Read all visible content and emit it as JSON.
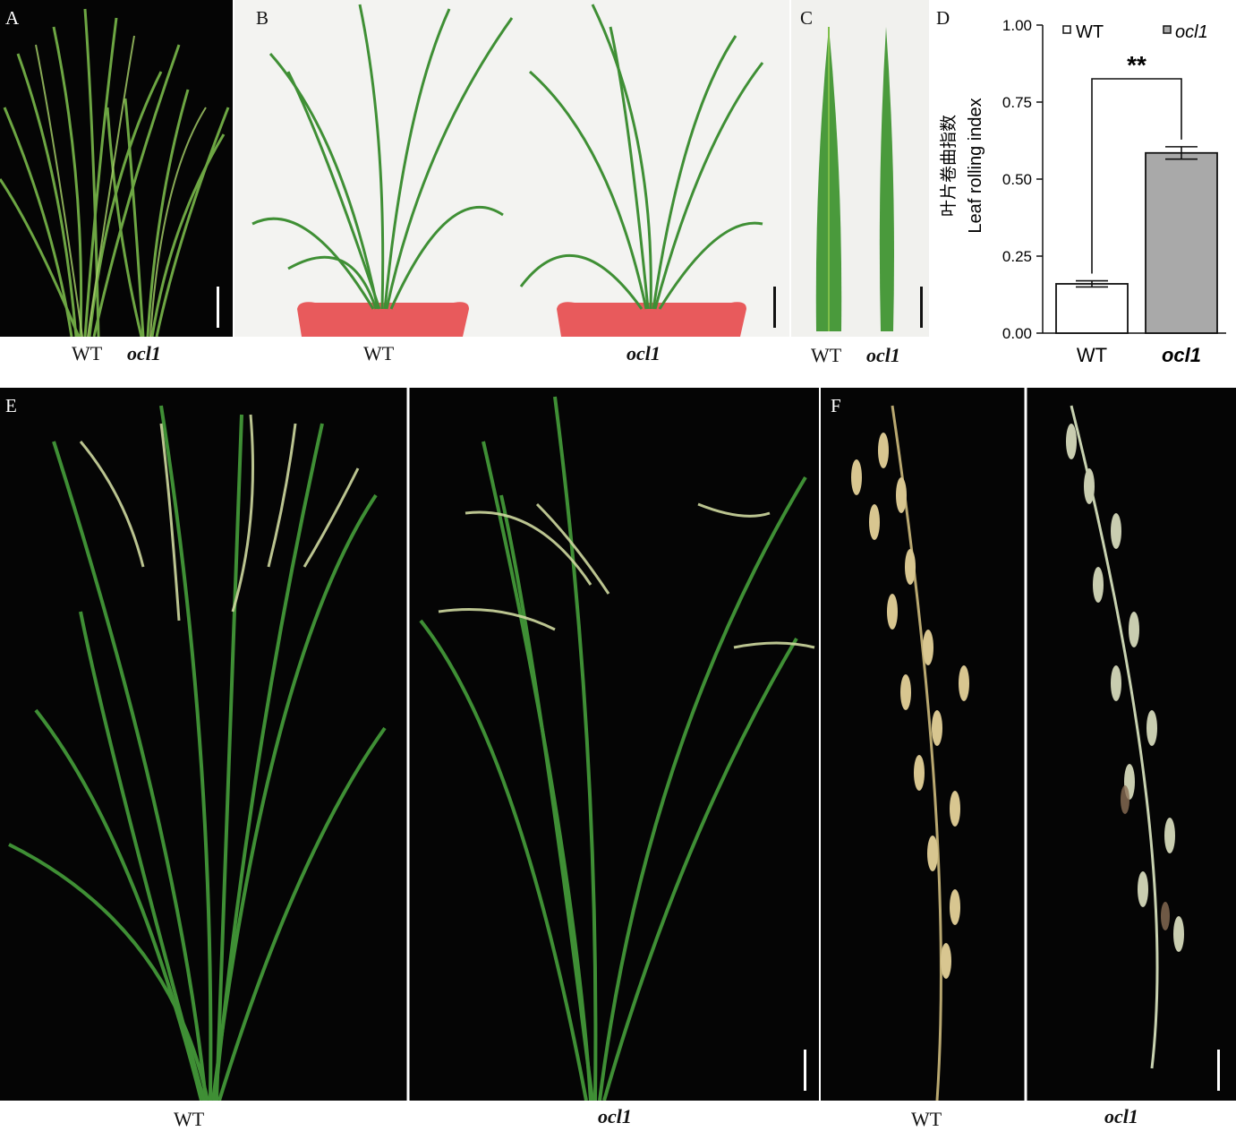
{
  "panels": {
    "A": {
      "label": "A",
      "captions": [
        "WT",
        "ocl1"
      ]
    },
    "B": {
      "label": "B",
      "captions": [
        "WT",
        "ocl1"
      ]
    },
    "C": {
      "label": "C",
      "captions": [
        "WT",
        "ocl1"
      ]
    },
    "D": {
      "label": "D"
    },
    "E": {
      "label": "E",
      "captions": [
        "WT",
        "ocl1"
      ]
    },
    "F": {
      "label": "F",
      "captions": [
        "WT",
        "ocl1"
      ]
    }
  },
  "colors": {
    "dark_bg": "#050505",
    "light_bg": "#f3f3f1",
    "leaf_green": "#3f8f35",
    "leaf_light": "#7fbf4a",
    "pot_red": "#e85a5c",
    "grain": "#d8c690",
    "wt_bar": "#ffffff",
    "ocl1_bar": "#a9a9a9"
  },
  "chart_data": {
    "type": "bar",
    "categories": [
      "WT",
      "ocl1"
    ],
    "values": [
      0.16,
      0.585
    ],
    "errors": [
      0.01,
      0.02
    ],
    "ylabel_cn": "叶片卷曲指数",
    "ylabel_en": "Leaf rolling index",
    "ylim": [
      0,
      1.0
    ],
    "yticks": [
      "0.00",
      "0.25",
      "0.50",
      "0.75",
      "1.00"
    ],
    "legend": [
      "WT",
      "ocl1"
    ],
    "legend_position": "top",
    "significance": "**"
  }
}
